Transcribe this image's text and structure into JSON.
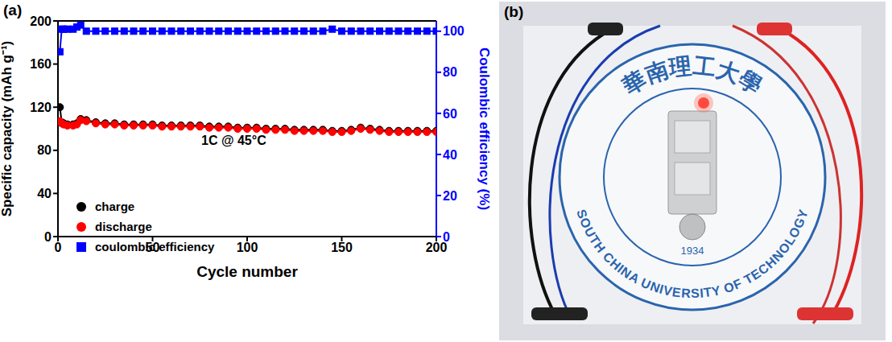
{
  "chart_data": {
    "type": "line",
    "panel": "(a)",
    "annotation": "1C @ 45°C",
    "x_label": "Cycle number",
    "y_label": "Specific capacity (mAh g⁻¹)",
    "y2_label": "Coulombic efficiency (%)",
    "x": [
      1,
      2,
      3,
      5,
      8,
      10,
      12,
      15,
      20,
      25,
      30,
      35,
      40,
      45,
      50,
      55,
      60,
      65,
      70,
      75,
      80,
      85,
      90,
      95,
      100,
      105,
      110,
      115,
      120,
      125,
      130,
      135,
      140,
      145,
      150,
      155,
      160,
      165,
      170,
      175,
      180,
      185,
      190,
      195,
      200
    ],
    "xlim": [
      0,
      200
    ],
    "xticks": [
      0,
      50,
      100,
      150,
      200
    ],
    "ylim": [
      0,
      200
    ],
    "yticks": [
      0,
      40,
      80,
      120,
      160,
      200
    ],
    "y2lim": [
      0,
      105
    ],
    "y2ticks": [
      0,
      20,
      40,
      60,
      80,
      100
    ],
    "legend": "lower left",
    "series": [
      {
        "name": "charge",
        "color": "#000000",
        "marker": "circle",
        "values": [
          120,
          106,
          105,
          104,
          104,
          105,
          109,
          108,
          106,
          105,
          105,
          104,
          104,
          104,
          104,
          103,
          103,
          103,
          103,
          103,
          102,
          102,
          102,
          101,
          101,
          101,
          100,
          100,
          100,
          99,
          99,
          99,
          99,
          98,
          98,
          99,
          101,
          100,
          99,
          98,
          98,
          98,
          98,
          98,
          98
        ]
      },
      {
        "name": "discharge",
        "color": "#ff0000",
        "marker": "circle",
        "values": [
          107,
          105,
          104,
          103,
          103,
          104,
          108,
          107,
          105,
          104,
          104,
          103,
          103,
          103,
          103,
          102,
          102,
          102,
          102,
          102,
          101,
          101,
          101,
          100,
          100,
          100,
          99,
          99,
          99,
          98,
          98,
          98,
          98,
          97,
          97,
          98,
          100,
          99,
          98,
          97,
          97,
          97,
          97,
          97,
          97
        ]
      },
      {
        "name": "coulombic efficiency",
        "color": "#0000ff",
        "marker": "square",
        "axis": "y2",
        "values": [
          90,
          101,
          101,
          101,
          101,
          102,
          103,
          100,
          100,
          100,
          100,
          100,
          100,
          100,
          100,
          100,
          100,
          100,
          100,
          100,
          100,
          100,
          100,
          100,
          100,
          100,
          100,
          100,
          100,
          100,
          100,
          100,
          100,
          101,
          100,
          100,
          100,
          100,
          100,
          100,
          100,
          100,
          100,
          100,
          100
        ]
      }
    ]
  },
  "photo": {
    "panel": "(b)",
    "logo_chinese": "華南理工大學",
    "logo_english": "SOUTH CHINA UNIVERSITY OF TECHNOLOGY",
    "logo_year": "1934"
  }
}
